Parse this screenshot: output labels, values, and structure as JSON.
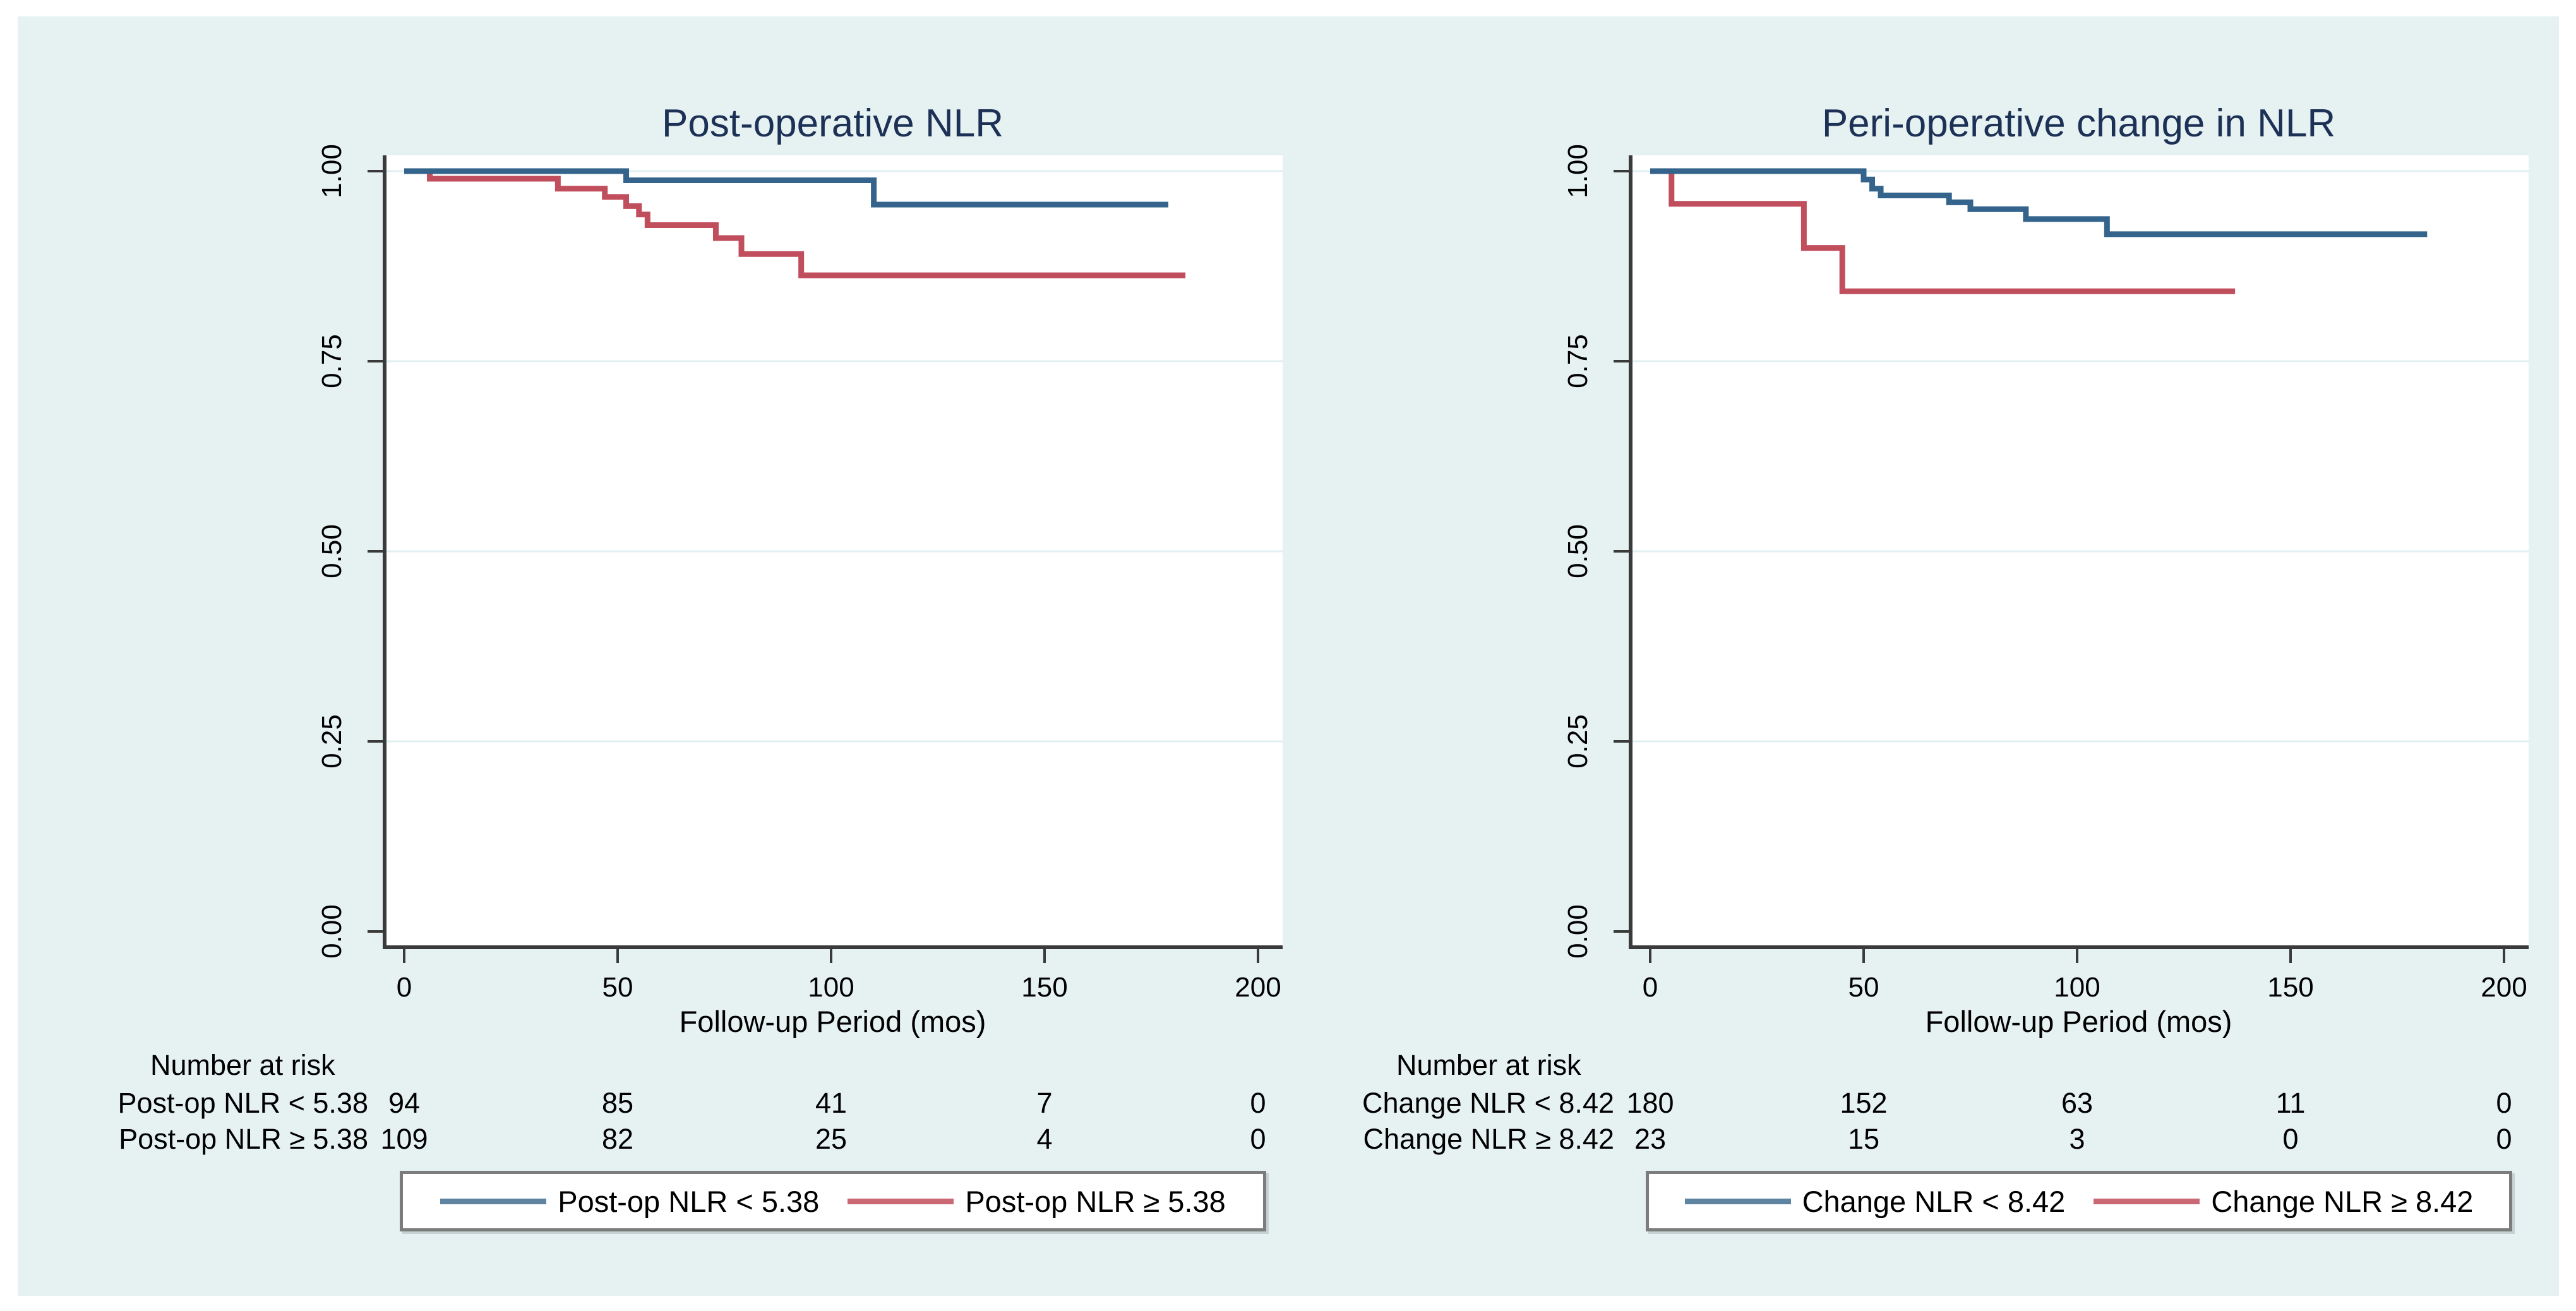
{
  "page": {
    "background": "#ffffff",
    "figure_background": "#e6f1f2"
  },
  "style": {
    "axis_color": "#3a3a3a",
    "grid_color": "#e2eff1",
    "plot_background": "#ffffff",
    "title_color": "#1d3156",
    "text_color": "#000000"
  },
  "chart_data": [
    {
      "type": "km_step",
      "title": "Post-operative NLR",
      "xlabel": "Follow-up Period (mos)",
      "x_ticks": [
        {
          "label": "0",
          "value": 0
        },
        {
          "label": "50",
          "value": 50
        },
        {
          "label": "100",
          "value": 100
        },
        {
          "label": "150",
          "value": 150
        },
        {
          "label": "200",
          "value": 200
        }
      ],
      "y_ticks": [
        {
          "label": "1.00",
          "value": 1.0
        },
        {
          "label": "0.75",
          "value": 0.75
        },
        {
          "label": "0.50",
          "value": 0.5
        },
        {
          "label": "0.25",
          "value": 0.25
        },
        {
          "label": "0.00",
          "value": 0.0
        }
      ],
      "xlim": [
        0,
        206
      ],
      "ylim": [
        0,
        1
      ],
      "grid": "horizontal",
      "legend_position": "bottom",
      "series": [
        {
          "name": "Post-op NLR < 5.38",
          "color": "#34648c",
          "steps": [
            [
              0,
              1.0
            ],
            [
              52,
              0.988
            ],
            [
              110,
              0.956
            ]
          ],
          "end": 179
        },
        {
          "name": "Post-op NLR ≥ 5.38",
          "color": "#c04e5c",
          "steps": [
            [
              0,
              1.0
            ],
            [
              6,
              0.99
            ],
            [
              36,
              0.977
            ],
            [
              47,
              0.966
            ],
            [
              52,
              0.954
            ],
            [
              55,
              0.943
            ],
            [
              57,
              0.929
            ],
            [
              73,
              0.912
            ],
            [
              79,
              0.891
            ],
            [
              93,
              0.863
            ]
          ],
          "end": 183
        }
      ],
      "number_at_risk": {
        "header": "Number at risk",
        "rows": [
          {
            "label": "Post-op NLR < 5.38",
            "counts": [
              "94",
              "85",
              "41",
              "7",
              "0"
            ]
          },
          {
            "label": "Post-op NLR ≥ 5.38",
            "counts": [
              "109",
              "82",
              "25",
              "4",
              "0"
            ]
          }
        ]
      },
      "legend": [
        {
          "label": "Post-op NLR < 5.38",
          "color": "#5f84a2"
        },
        {
          "label": "Post-op NLR ≥ 5.38",
          "color": "#cb6875"
        }
      ]
    },
    {
      "type": "km_step",
      "title": "Peri-operative change in NLR",
      "xlabel": "Follow-up Period (mos)",
      "x_ticks": [
        {
          "label": "0",
          "value": 0
        },
        {
          "label": "50",
          "value": 50
        },
        {
          "label": "100",
          "value": 100
        },
        {
          "label": "150",
          "value": 150
        },
        {
          "label": "200",
          "value": 200
        }
      ],
      "y_ticks": [
        {
          "label": "1.00",
          "value": 1.0
        },
        {
          "label": "0.75",
          "value": 0.75
        },
        {
          "label": "0.50",
          "value": 0.5
        },
        {
          "label": "0.25",
          "value": 0.25
        },
        {
          "label": "0.00",
          "value": 0.0
        }
      ],
      "xlim": [
        0,
        206
      ],
      "ylim": [
        0,
        1
      ],
      "grid": "horizontal",
      "legend_position": "bottom",
      "series": [
        {
          "name": "Change NLR < 8.42",
          "color": "#34648c",
          "steps": [
            [
              0,
              1.0
            ],
            [
              50,
              0.989
            ],
            [
              52,
              0.977
            ],
            [
              54,
              0.968
            ],
            [
              70,
              0.959
            ],
            [
              75,
              0.95
            ],
            [
              88,
              0.937
            ],
            [
              107,
              0.917
            ]
          ],
          "end": 182
        },
        {
          "name": "Change NLR ≥ 8.42",
          "color": "#c04e5c",
          "steps": [
            [
              0,
              1.0
            ],
            [
              5,
              0.957
            ],
            [
              36,
              0.899
            ],
            [
              45,
              0.842
            ]
          ],
          "end": 137
        }
      ],
      "number_at_risk": {
        "header": "Number at risk",
        "rows": [
          {
            "label": "Change NLR < 8.42",
            "counts": [
              "180",
              "152",
              "63",
              "11",
              "0"
            ]
          },
          {
            "label": "Change NLR ≥ 8.42",
            "counts": [
              "23",
              "15",
              "3",
              "0",
              "0"
            ]
          }
        ]
      },
      "legend": [
        {
          "label": "Change NLR < 8.42",
          "color": "#5f84a2"
        },
        {
          "label": "Change NLR ≥ 8.42",
          "color": "#cb6875"
        }
      ]
    }
  ]
}
